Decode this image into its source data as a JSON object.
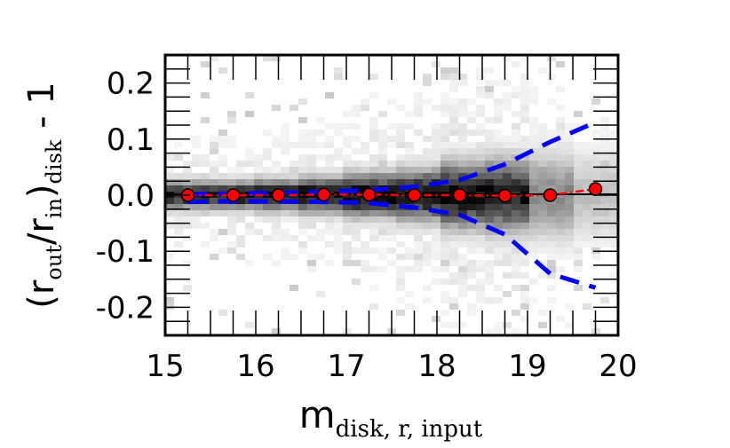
{
  "chart_data": {
    "type": "scatter",
    "xlim": [
      15,
      20
    ],
    "ylim": [
      -0.25,
      0.25
    ],
    "x_ticks": [
      15,
      16,
      17,
      18,
      19,
      20
    ],
    "x_tick_labels": [
      "15",
      "16",
      "17",
      "18",
      "19",
      "20"
    ],
    "y_ticks": [
      0.2,
      0.1,
      0.0,
      -0.1,
      -0.2
    ],
    "y_tick_labels": [
      "0.2",
      "0.1",
      "0.0",
      "-0.1",
      "-0.2"
    ],
    "xlabel": {
      "main": "m",
      "sub": "disk, r, input"
    },
    "ylabel": {
      "open": "(r",
      "sub1": "out",
      "slash": "/r",
      "sub2": "in",
      "close": ")",
      "sub3": "disk",
      "tail": " - 1"
    },
    "grid": false,
    "colors": {
      "points": "#ff0000",
      "band": "#0000ff",
      "median": "#ff0000",
      "density": "#000000"
    },
    "median_points": {
      "x": [
        15.25,
        15.75,
        16.25,
        16.75,
        17.25,
        17.75,
        18.25,
        18.75,
        19.25,
        19.75
      ],
      "y": [
        0.0,
        0.0,
        0.0,
        0.001,
        0.001,
        0.0,
        0.0,
        -0.001,
        0.0,
        0.011
      ]
    },
    "upper_band": {
      "x": [
        15.25,
        15.75,
        16.25,
        16.75,
        17.25,
        17.75,
        18.25,
        18.75,
        19.25,
        19.75
      ],
      "y": [
        0.002,
        0.003,
        0.004,
        0.006,
        0.009,
        0.015,
        0.027,
        0.055,
        0.095,
        0.13
      ]
    },
    "lower_band": {
      "x": [
        15.25,
        15.75,
        16.25,
        16.75,
        17.25,
        17.75,
        18.25,
        18.75,
        19.25,
        19.75
      ],
      "y": [
        -0.012,
        -0.011,
        -0.011,
        -0.012,
        -0.014,
        -0.022,
        -0.035,
        -0.07,
        -0.14,
        -0.165
      ]
    },
    "density_columns": [
      {
        "x": 15.25,
        "halfwidth": 0.02,
        "intensity": 0.9
      },
      {
        "x": 15.75,
        "halfwidth": 0.02,
        "intensity": 0.92
      },
      {
        "x": 16.25,
        "halfwidth": 0.022,
        "intensity": 0.95
      },
      {
        "x": 16.75,
        "halfwidth": 0.025,
        "intensity": 0.97
      },
      {
        "x": 17.25,
        "halfwidth": 0.03,
        "intensity": 1.0
      },
      {
        "x": 17.75,
        "halfwidth": 0.035,
        "intensity": 1.0
      },
      {
        "x": 18.25,
        "halfwidth": 0.045,
        "intensity": 1.0
      },
      {
        "x": 18.75,
        "halfwidth": 0.05,
        "intensity": 0.9
      },
      {
        "x": 19.25,
        "halfwidth": 0.06,
        "intensity": 0.45
      },
      {
        "x": 19.75,
        "halfwidth": 0.06,
        "intensity": 0.25
      }
    ]
  }
}
